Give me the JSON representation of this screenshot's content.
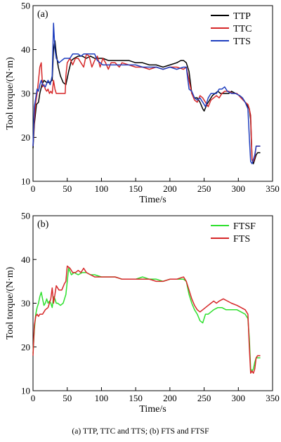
{
  "caption": "(a) TTP, TTC and TTS; (b) FTS and FTSF",
  "chart_data": [
    {
      "type": "line",
      "panel_label": "(a)",
      "xlabel": "Time/s",
      "ylabel": "Tool torque/(N·m)",
      "xlim": [
        0,
        350
      ],
      "ylim": [
        10,
        50
      ],
      "xticks": [
        0,
        50,
        100,
        150,
        200,
        250,
        300,
        350
      ],
      "yticks": [
        10,
        20,
        30,
        40,
        50
      ],
      "legend_position": "top-right",
      "series": [
        {
          "name": "TTP",
          "color": "#000000",
          "x": [
            0,
            2,
            5,
            8,
            10,
            13,
            16,
            20,
            24,
            28,
            30,
            32,
            34,
            37,
            40,
            44,
            48,
            52,
            56,
            60,
            66,
            72,
            78,
            84,
            90,
            96,
            102,
            110,
            120,
            130,
            140,
            150,
            160,
            170,
            180,
            190,
            200,
            210,
            216,
            220,
            224,
            228,
            232,
            236,
            240,
            244,
            248,
            250,
            254,
            258,
            262,
            266,
            270,
            274,
            278,
            282,
            286,
            290,
            296,
            302,
            306,
            310,
            314,
            316,
            318,
            320,
            322,
            324,
            326,
            328,
            332
          ],
          "y": [
            17.5,
            23,
            27.5,
            28,
            30,
            32,
            33,
            32.5,
            32.5,
            33,
            40,
            42,
            39,
            36,
            34,
            32.5,
            32,
            35,
            37.5,
            38,
            38.5,
            38.5,
            38,
            38.5,
            38,
            38,
            38,
            37.5,
            37.5,
            37.5,
            37.5,
            37,
            37,
            36.5,
            36.5,
            36,
            36.5,
            37,
            37.5,
            37.5,
            37,
            35,
            30,
            29,
            29,
            28,
            26.5,
            26,
            27.5,
            28.5,
            29.5,
            30,
            30.5,
            30,
            30,
            30,
            30,
            30.5,
            30,
            29.5,
            29,
            28,
            27,
            26.5,
            24,
            15,
            14,
            15,
            16,
            16.5,
            16.5
          ]
        },
        {
          "name": "TTC",
          "color": "#d62728",
          "x": [
            0,
            2,
            4,
            6,
            8,
            10,
            12,
            14,
            16,
            18,
            20,
            22,
            24,
            26,
            28,
            30,
            32,
            34,
            36,
            40,
            44,
            47,
            48,
            50,
            54,
            58,
            62,
            66,
            70,
            74,
            78,
            82,
            86,
            90,
            94,
            98,
            102,
            106,
            110,
            114,
            120,
            126,
            130,
            140,
            150,
            160,
            170,
            180,
            190,
            200,
            210,
            220,
            224,
            228,
            232,
            236,
            240,
            244,
            248,
            252,
            256,
            260,
            264,
            268,
            272,
            276,
            280,
            286,
            292,
            298,
            304,
            310,
            314,
            316,
            318,
            320,
            322,
            324,
            326,
            328,
            332
          ],
          "y": [
            18,
            24,
            28,
            30,
            33,
            36,
            37,
            31.5,
            32,
            31,
            30.5,
            31,
            30,
            30.5,
            30,
            33,
            31,
            30,
            30,
            30,
            30,
            30,
            34,
            37,
            38,
            36.5,
            38,
            38,
            37,
            36,
            39,
            38.5,
            36,
            37.5,
            38.5,
            36,
            38,
            37,
            35.5,
            37,
            37,
            36,
            37,
            36.5,
            36,
            36,
            35.5,
            36,
            35.5,
            36,
            36,
            35.5,
            36,
            33,
            30,
            28.5,
            28,
            29.5,
            29,
            28,
            27,
            28.5,
            29,
            29.5,
            29,
            30,
            30.5,
            30.5,
            30,
            30,
            29,
            28,
            27.5,
            26.5,
            25,
            15,
            14.5,
            15.5,
            18,
            18,
            18
          ]
        },
        {
          "name": "TTS",
          "color": "#1f3fbf",
          "x": [
            0,
            2,
            4,
            6,
            8,
            10,
            12,
            14,
            18,
            22,
            25,
            28,
            30,
            32,
            34,
            38,
            42,
            46,
            50,
            54,
            58,
            62,
            66,
            70,
            74,
            78,
            82,
            86,
            90,
            94,
            98,
            102,
            110,
            120,
            130,
            140,
            150,
            160,
            170,
            180,
            190,
            200,
            210,
            220,
            224,
            228,
            232,
            236,
            240,
            244,
            248,
            252,
            256,
            260,
            264,
            268,
            272,
            276,
            280,
            284,
            290,
            296,
            302,
            306,
            310,
            314,
            316,
            318,
            320,
            322,
            324,
            326,
            328,
            332
          ],
          "y": [
            18,
            27,
            29,
            31,
            30.5,
            32,
            33,
            32,
            31.5,
            33,
            32,
            34,
            46,
            40,
            38,
            37,
            37.5,
            38,
            38,
            38,
            39,
            39,
            39,
            38.5,
            39,
            39,
            39,
            39,
            39,
            37.5,
            37,
            36.5,
            36.5,
            36.5,
            36.5,
            36.5,
            36.5,
            36,
            36,
            36,
            35.5,
            36,
            35.5,
            36,
            36,
            31,
            30.5,
            29,
            28.5,
            29,
            28,
            27,
            29,
            30,
            30,
            30,
            31,
            31,
            31.5,
            30.5,
            30,
            30,
            29.5,
            29,
            28,
            26.5,
            20,
            14.5,
            14,
            15,
            16,
            18,
            18,
            18
          ]
        }
      ]
    },
    {
      "type": "line",
      "panel_label": "(b)",
      "xlabel": "Time/s",
      "ylabel": "Tool torque/(N·m)",
      "xlim": [
        0,
        350
      ],
      "ylim": [
        10,
        50
      ],
      "xticks": [
        0,
        50,
        100,
        150,
        200,
        250,
        300,
        350
      ],
      "yticks": [
        10,
        20,
        30,
        40,
        50
      ],
      "legend_position": "top-right",
      "series": [
        {
          "name": "FTSF",
          "color": "#2ee02e",
          "x": [
            0,
            2,
            4,
            6,
            8,
            10,
            12,
            14,
            16,
            18,
            20,
            22,
            24,
            26,
            28,
            30,
            32,
            34,
            36,
            40,
            44,
            48,
            52,
            56,
            60,
            66,
            72,
            78,
            84,
            90,
            100,
            110,
            120,
            130,
            140,
            150,
            160,
            170,
            180,
            190,
            200,
            210,
            220,
            224,
            228,
            232,
            236,
            240,
            244,
            248,
            252,
            256,
            260,
            264,
            270,
            276,
            282,
            290,
            298,
            304,
            310,
            314,
            316,
            318,
            320,
            322,
            324,
            326,
            328,
            332
          ],
          "y": [
            18.5,
            24,
            27.5,
            29,
            30,
            31.5,
            32.5,
            31,
            29.5,
            30,
            31,
            30,
            30.5,
            30,
            29,
            31.5,
            31,
            30,
            30,
            29.5,
            30,
            32,
            38,
            36.5,
            37,
            36.5,
            37,
            37,
            36.5,
            36.5,
            36,
            36,
            36,
            35.5,
            35.5,
            35.5,
            36,
            35.5,
            35.5,
            35,
            35.5,
            35.5,
            35.5,
            35,
            32,
            30,
            28.5,
            27.5,
            26,
            25.5,
            27.5,
            27.5,
            28,
            28.5,
            29,
            29,
            28.5,
            28.5,
            28.5,
            28,
            27.5,
            26.5,
            22,
            15,
            14.5,
            15,
            16.5,
            17.5,
            17.5,
            17.5
          ]
        },
        {
          "name": "FTS",
          "color": "#d62728",
          "x": [
            0,
            2,
            4,
            6,
            8,
            10,
            14,
            18,
            22,
            26,
            28,
            30,
            32,
            34,
            38,
            42,
            46,
            48,
            50,
            54,
            58,
            62,
            66,
            70,
            74,
            78,
            84,
            90,
            100,
            110,
            120,
            130,
            140,
            150,
            160,
            170,
            180,
            190,
            200,
            210,
            220,
            224,
            228,
            232,
            236,
            240,
            244,
            248,
            252,
            256,
            260,
            264,
            268,
            272,
            278,
            284,
            290,
            298,
            304,
            310,
            314,
            316,
            318,
            320,
            322,
            324,
            326,
            328,
            332
          ],
          "y": [
            18,
            25,
            27,
            27.5,
            27,
            27.5,
            27.5,
            28.5,
            29,
            31,
            33.5,
            30,
            32,
            34,
            33,
            33,
            34.5,
            35,
            38.5,
            38,
            37,
            37,
            37.5,
            37,
            38,
            37,
            36.5,
            36,
            36,
            36,
            36,
            35.5,
            35.5,
            35.5,
            35.5,
            35.5,
            35,
            35,
            35.5,
            35.5,
            36,
            35,
            33,
            31,
            29.5,
            28.5,
            28,
            28.5,
            29,
            29.5,
            30,
            30.5,
            30,
            30.5,
            31,
            30.5,
            30,
            29.5,
            29,
            28.5,
            27.5,
            20,
            14,
            14.5,
            14,
            15,
            17.5,
            18,
            18
          ]
        }
      ]
    }
  ]
}
